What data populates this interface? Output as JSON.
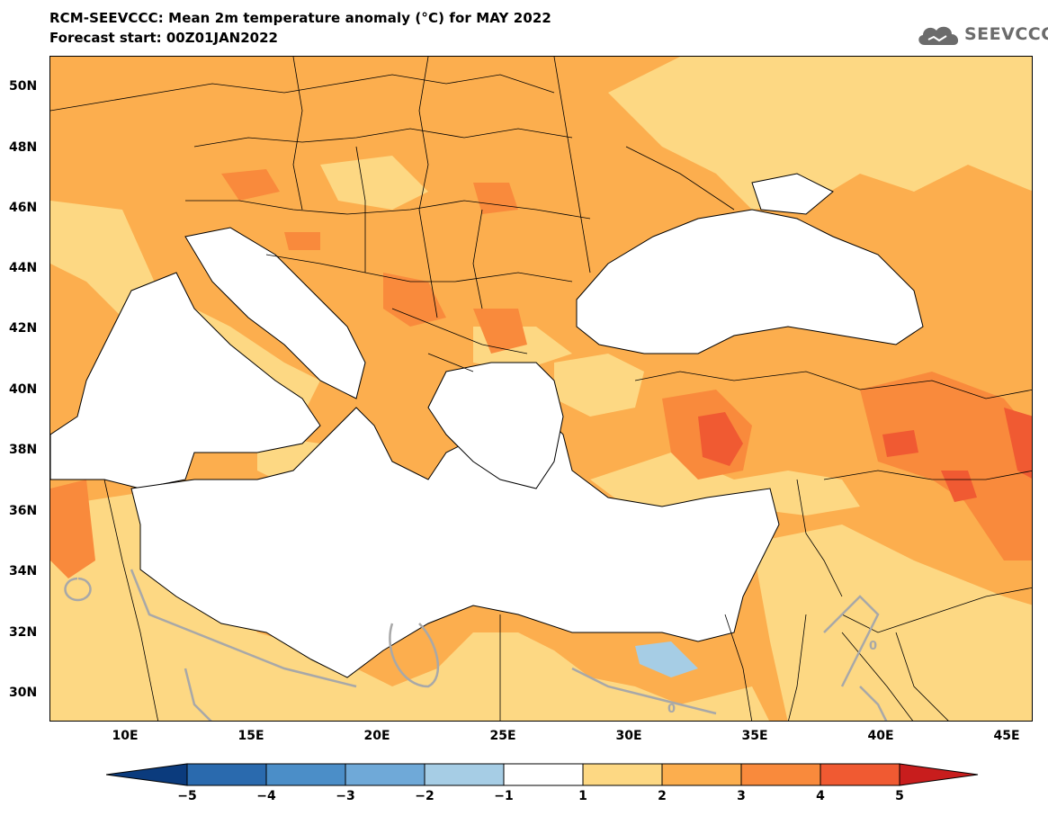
{
  "header": {
    "title": "RCM-SEEVCCC: Mean 2m temperature anomaly (°C) for MAY 2022",
    "subtitle": "Forecast start: 00Z01JAN2022",
    "logo_text": "SEEVCCC"
  },
  "map": {
    "lat_labels": [
      "50N",
      "48N",
      "46N",
      "44N",
      "42N",
      "40N",
      "38N",
      "36N",
      "34N",
      "32N",
      "30N"
    ],
    "lon_labels": [
      "10E",
      "15E",
      "20E",
      "25E",
      "30E",
      "35E",
      "40E",
      "45E"
    ],
    "contour_label": "0",
    "colors": {
      "anom_1_2": "#fdd883",
      "anom_2_3": "#fcae4e",
      "anom_3_4": "#f98a3c",
      "anom_4_5": "#f05a32",
      "anom_neg_1_0": "#a6cde5",
      "sea": "#ffffff",
      "contour": "#a8a8a8"
    }
  },
  "legend": {
    "labels": [
      "−5",
      "−4",
      "−3",
      "−2",
      "−1",
      "1",
      "2",
      "3",
      "4",
      "5"
    ],
    "colors": [
      "#0b3b7d",
      "#2a6aae",
      "#4b8ec8",
      "#6fa9d8",
      "#a6cde5",
      "#ffffff",
      "#fdd883",
      "#fcae4e",
      "#f98a3c",
      "#f05a32",
      "#c81d1d"
    ]
  }
}
